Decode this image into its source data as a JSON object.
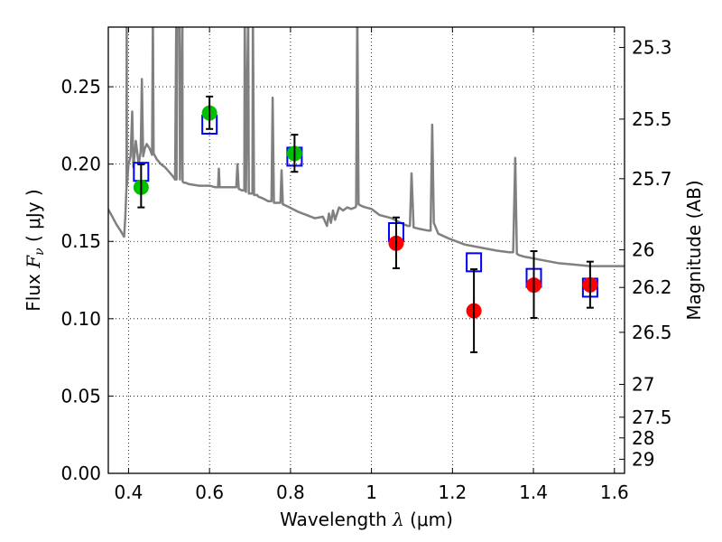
{
  "chart_data": {
    "type": "scatter",
    "title": "",
    "xlabel": "Wavelength  λ (μm)",
    "ylabel": "Flux  Fν  ( μJy )",
    "ylabel_parts": {
      "prefix": "Flux  ",
      "symbol": "F",
      "subscript": "ν",
      "unit": "  ( μJy )"
    },
    "xlabel_parts": {
      "prefix": "Wavelength  ",
      "symbol": "λ",
      "unit": " (μm)"
    },
    "y2label": "Magnitude (AB)",
    "xlim": [
      0.35,
      1.625
    ],
    "ylim": [
      0.0,
      0.2886
    ],
    "grid": true,
    "xticks": [
      0.4,
      0.6,
      0.8,
      1.0,
      1.2,
      1.4,
      1.6
    ],
    "xtick_labels": [
      "0.4",
      "0.6",
      "0.8",
      "1",
      "1.2",
      "1.4",
      "1.6"
    ],
    "yticks": [
      0.0,
      0.05,
      0.1,
      0.15,
      0.2,
      0.25
    ],
    "ytick_labels": [
      "0.00",
      "0.05",
      "0.10",
      "0.15",
      "0.20",
      "0.25"
    ],
    "y2_ticks_mag": [
      25.3,
      25.5,
      25.7,
      26,
      26.2,
      26.5,
      27,
      27.5,
      28,
      29
    ],
    "y2_tick_labels": [
      "25.3",
      "25.5",
      "25.7",
      "26",
      "26.2",
      "26.5",
      "27",
      "27.5",
      "28",
      "29"
    ],
    "y2_zeropoint_ab": 23.9,
    "colors": {
      "spectrum": "#808080",
      "model_box": "#0000ff",
      "optical_points": "#00bf00",
      "nir_points": "#ff0000",
      "errorbar": "#000000"
    },
    "series": [
      {
        "name": "model spectrum",
        "type": "line",
        "x": [
          0.349,
          0.36,
          0.37,
          0.38,
          0.389,
          0.392,
          0.395,
          0.3955,
          0.396,
          0.4,
          0.405,
          0.409,
          0.412,
          0.418,
          0.425,
          0.43,
          0.433,
          0.436,
          0.44,
          0.445,
          0.452,
          0.458,
          0.4601,
          0.462,
          0.47,
          0.48,
          0.49,
          0.5,
          0.51,
          0.515,
          0.518,
          0.5185,
          0.52,
          0.5255,
          0.527,
          0.533,
          0.5335,
          0.536,
          0.54,
          0.55,
          0.575,
          0.6,
          0.615,
          0.621,
          0.623,
          0.625,
          0.63,
          0.65,
          0.666,
          0.669,
          0.672,
          0.68,
          0.686,
          0.687,
          0.69,
          0.6955,
          0.697,
          0.706,
          0.707,
          0.71,
          0.718,
          0.72,
          0.73,
          0.745,
          0.753,
          0.756,
          0.759,
          0.77,
          0.775,
          0.778,
          0.781,
          0.79,
          0.82,
          0.84,
          0.86,
          0.88,
          0.89,
          0.895,
          0.9,
          0.905,
          0.91,
          0.92,
          0.93,
          0.94,
          0.95,
          0.96,
          0.962,
          0.965,
          0.968,
          0.975,
          0.985,
          1.0,
          1.02,
          1.05,
          1.08,
          1.09,
          1.095,
          1.099,
          1.104,
          1.12,
          1.14,
          1.146,
          1.15,
          1.154,
          1.165,
          1.19,
          1.23,
          1.27,
          1.31,
          1.34,
          1.35,
          1.355,
          1.359,
          1.365,
          1.38,
          1.42,
          1.46,
          1.5,
          1.54,
          1.58,
          1.625
        ],
        "y": [
          0.171,
          0.166,
          0.161,
          0.157,
          0.153,
          0.165,
          0.186,
          0.3,
          0.186,
          0.2,
          0.205,
          0.234,
          0.198,
          0.215,
          0.2,
          0.208,
          0.255,
          0.205,
          0.21,
          0.213,
          0.21,
          0.206,
          0.3,
          0.207,
          0.203,
          0.2,
          0.198,
          0.195,
          0.192,
          0.19,
          0.3,
          0.19,
          0.3,
          0.3,
          0.19,
          0.3,
          0.189,
          0.188,
          0.188,
          0.187,
          0.186,
          0.186,
          0.185,
          0.185,
          0.197,
          0.185,
          0.185,
          0.185,
          0.185,
          0.2,
          0.184,
          0.183,
          0.183,
          0.3,
          0.182,
          0.3,
          0.181,
          0.181,
          0.3,
          0.18,
          0.18,
          0.179,
          0.178,
          0.176,
          0.176,
          0.243,
          0.175,
          0.175,
          0.175,
          0.196,
          0.174,
          0.173,
          0.169,
          0.167,
          0.165,
          0.166,
          0.16,
          0.168,
          0.162,
          0.17,
          0.164,
          0.172,
          0.17,
          0.172,
          0.171,
          0.172,
          0.173,
          0.3,
          0.174,
          0.173,
          0.172,
          0.171,
          0.167,
          0.165,
          0.161,
          0.16,
          0.16,
          0.194,
          0.159,
          0.158,
          0.157,
          0.157,
          0.2255,
          0.162,
          0.155,
          0.152,
          0.148,
          0.146,
          0.144,
          0.143,
          0.143,
          0.204,
          0.142,
          0.141,
          0.14,
          0.138,
          0.136,
          0.135,
          0.134,
          0.134,
          0.134
        ]
      },
      {
        "name": "model synthetic photometry",
        "type": "scatter",
        "marker": "open-square",
        "x": [
          0.431,
          0.6,
          0.81,
          1.061,
          1.253,
          1.401,
          1.54
        ],
        "y": [
          0.195,
          0.2255,
          0.2048,
          0.156,
          0.1365,
          0.1264,
          0.1201
        ]
      },
      {
        "name": "observed optical",
        "type": "scatter",
        "marker": "filled-circle",
        "x": [
          0.431,
          0.6,
          0.81
        ],
        "y": [
          0.185,
          0.233,
          0.2068
        ],
        "yerr_low": [
          0.172,
          0.2227,
          0.195
        ],
        "yerr_high": [
          0.1998,
          0.2437,
          0.219
        ]
      },
      {
        "name": "observed near-infrared",
        "type": "scatter",
        "marker": "filled-circle",
        "x": [
          1.061,
          1.253,
          1.401,
          1.54
        ],
        "y": [
          0.1488,
          0.1051,
          0.1217,
          0.1219
        ],
        "yerr_low": [
          0.1326,
          0.0783,
          0.1005,
          0.1071
        ],
        "yerr_high": [
          0.1655,
          0.132,
          0.1437,
          0.1369
        ]
      }
    ]
  }
}
